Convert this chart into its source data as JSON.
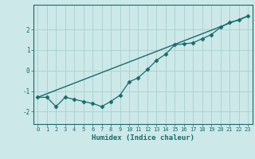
{
  "xlabel": "Humidex (Indice chaleur)",
  "bg_color": "#cce8e8",
  "grid_color": "#aacfcf",
  "line_color": "#1a6b6b",
  "xlim": [
    -0.5,
    23.5
  ],
  "ylim": [
    -2.6,
    3.2
  ],
  "x_ticks": [
    0,
    1,
    2,
    3,
    4,
    5,
    6,
    7,
    8,
    9,
    10,
    11,
    12,
    13,
    14,
    15,
    16,
    17,
    18,
    19,
    20,
    21,
    22,
    23
  ],
  "y_ticks": [
    -2,
    -1,
    0,
    1,
    2
  ],
  "line1_x": [
    0,
    1,
    2,
    3,
    4,
    5,
    6,
    7,
    8,
    9,
    10,
    11,
    12,
    13,
    14,
    15,
    16,
    17,
    18,
    19,
    20,
    21,
    22,
    23
  ],
  "line1_y": [
    -1.3,
    -1.3,
    -1.75,
    -1.3,
    -1.4,
    -1.5,
    -1.6,
    -1.75,
    -1.5,
    -1.2,
    -0.55,
    -0.35,
    0.05,
    0.5,
    0.8,
    1.25,
    1.3,
    1.35,
    1.55,
    1.75,
    2.1,
    2.35,
    2.45,
    2.65
  ],
  "line2_x": [
    0,
    23
  ],
  "line2_y": [
    -1.3,
    2.65
  ],
  "xlabel_fontsize": 6.5,
  "tick_fontsize": 5.0
}
